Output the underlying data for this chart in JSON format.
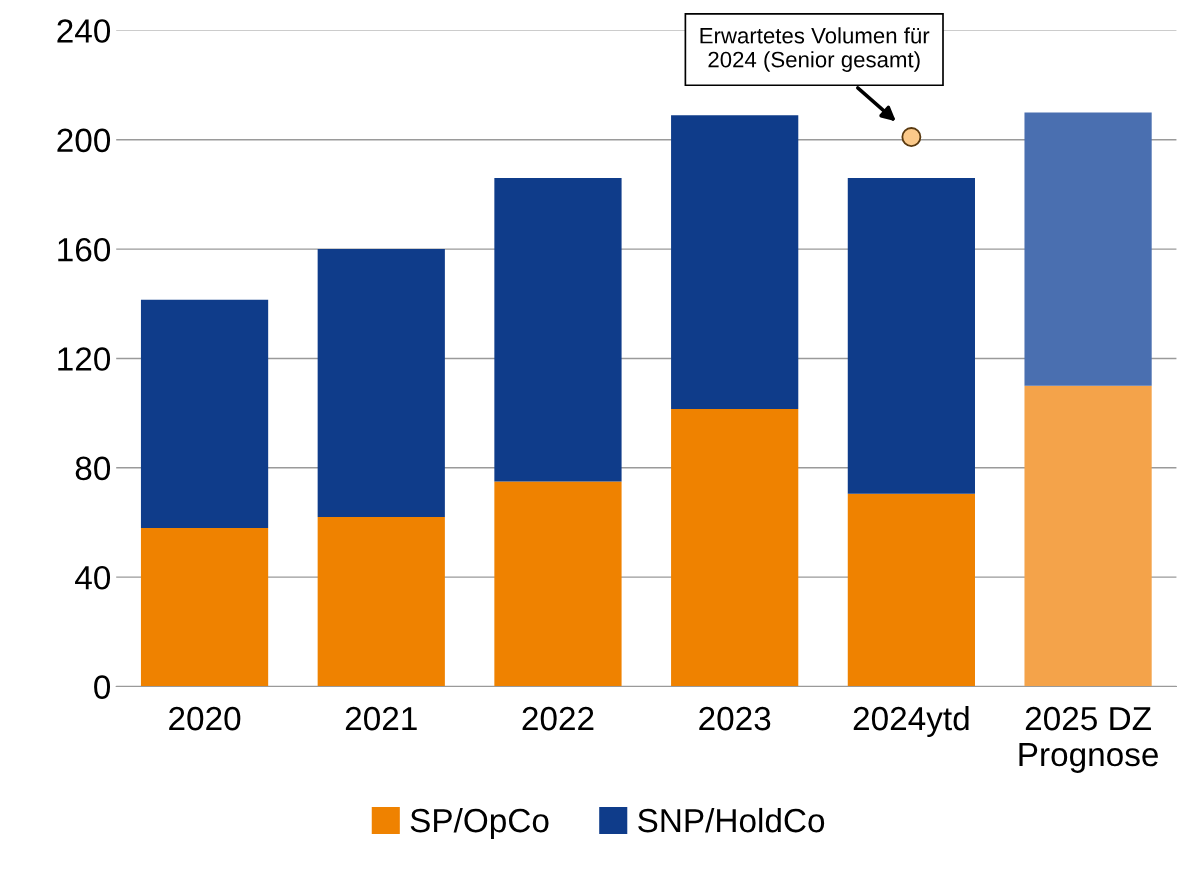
{
  "chart_data": {
    "type": "bar",
    "stacked": true,
    "categories": [
      "2020",
      "2021",
      "2022",
      "2023",
      "2024ytd",
      "2025 DZ\nPrognose"
    ],
    "series": [
      {
        "name": "SP/OpCo",
        "color": "#ef8200",
        "colors": [
          "#ef8200",
          "#ef8200",
          "#ef8200",
          "#ef8200",
          "#ef8200",
          "#f4a34a"
        ],
        "values": [
          58,
          62,
          75,
          101.5,
          70.5,
          110
        ]
      },
      {
        "name": "SNP/HoldCo",
        "color": "#0f3c8a",
        "colors": [
          "#0f3c8a",
          "#0f3c8a",
          "#0f3c8a",
          "#0f3c8a",
          "#0f3c8a",
          "#4a6fb0"
        ],
        "values": [
          83.5,
          98,
          111,
          107.5,
          115.5,
          100
        ]
      },
      {
        "type": "scatter",
        "color": "#fbc98a",
        "x": [
          "2024ytd"
        ],
        "values": [
          201
        ],
        "marker": "circle"
      }
    ],
    "annotations": [
      {
        "text": "Erwartetes Volumen für\n2024 (Senior gesamt)",
        "x": "2024ytd",
        "y": 201
      }
    ],
    "ylim": [
      0,
      240
    ],
    "yticks": [
      0,
      40,
      80,
      120,
      160,
      200,
      240
    ],
    "grid": "y",
    "legend": "bottom"
  }
}
